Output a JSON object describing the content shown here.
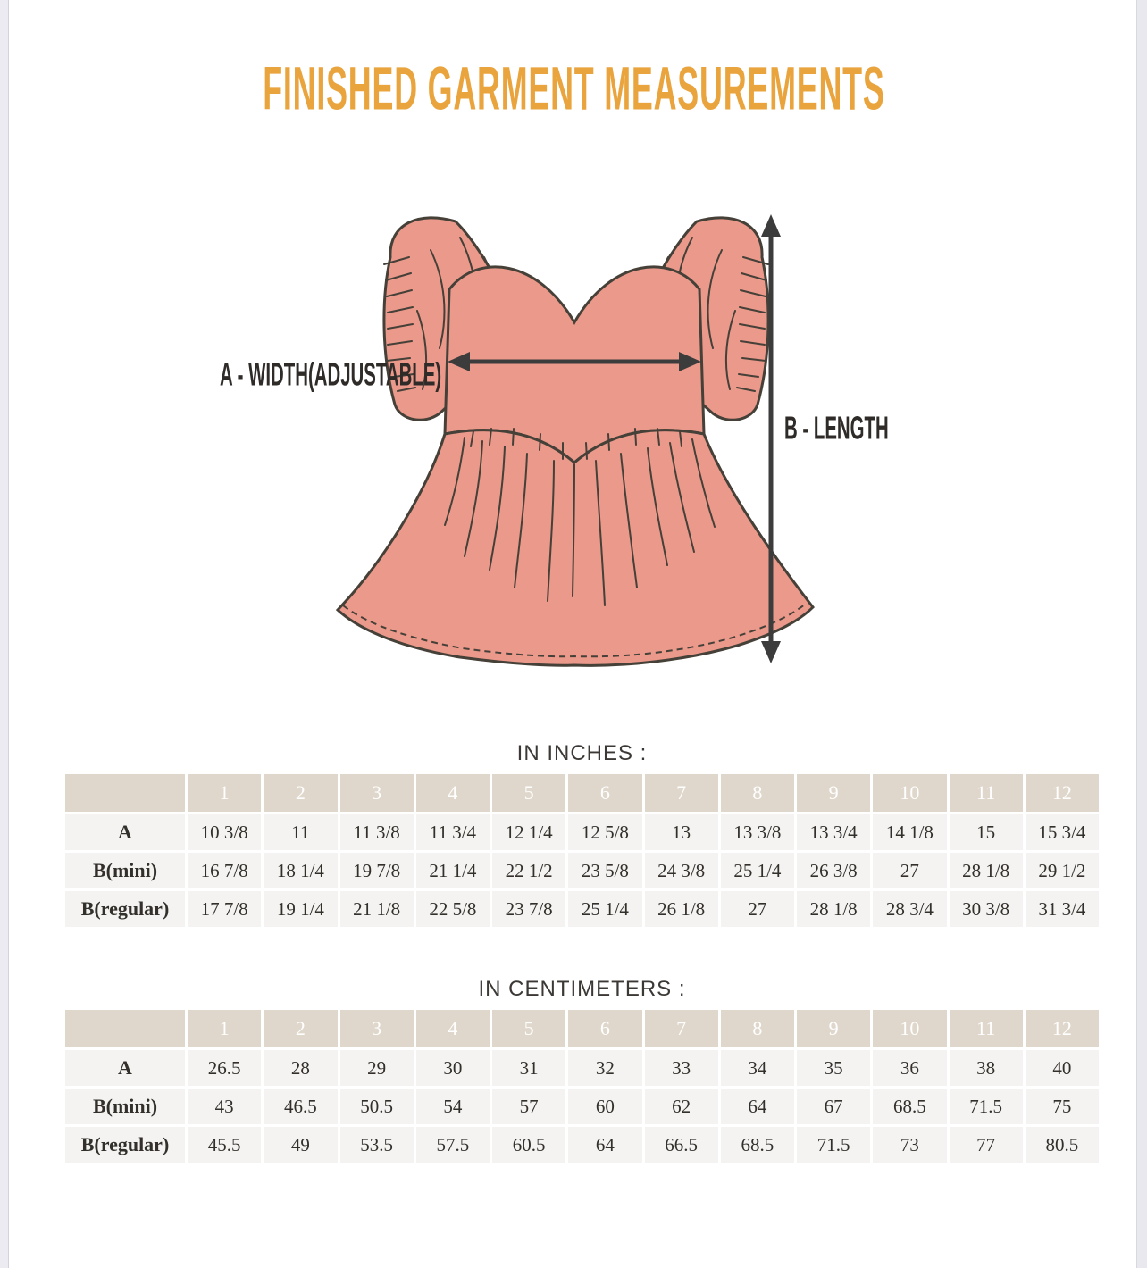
{
  "page_title": "FINISHED GARMENT MEASUREMENTS",
  "diagram": {
    "width_label": "A - WIDTH(ADJUSTABLE)",
    "length_label": "B - LENGTH",
    "dress_fill": "#eb998b",
    "outline_color": "#454038",
    "arrow_color": "#3c3c3c"
  },
  "colors": {
    "title": "#e9a43d",
    "table_header_bg": "#dfd7cb",
    "table_cell_bg": "#f4f3f1",
    "text": "#33302c"
  },
  "tables": [
    {
      "heading": "IN INCHES :",
      "sizes": [
        "1",
        "2",
        "3",
        "4",
        "5",
        "6",
        "7",
        "8",
        "9",
        "10",
        "11",
        "12"
      ],
      "rows": [
        {
          "label": "A",
          "values": [
            "10 3/8",
            "11",
            "11 3/8",
            "11 3/4",
            "12 1/4",
            "12 5/8",
            "13",
            "13 3/8",
            "13 3/4",
            "14 1/8",
            "15",
            "15 3/4"
          ]
        },
        {
          "label": "B(mini)",
          "values": [
            "16 7/8",
            "18 1/4",
            "19 7/8",
            "21 1/4",
            "22 1/2",
            "23 5/8",
            "24 3/8",
            "25 1/4",
            "26 3/8",
            "27",
            "28 1/8",
            "29 1/2"
          ]
        },
        {
          "label": "B(regular)",
          "values": [
            "17 7/8",
            "19 1/4",
            "21 1/8",
            "22 5/8",
            "23 7/8",
            "25 1/4",
            "26 1/8",
            "27",
            "28 1/8",
            "28 3/4",
            "30 3/8",
            "31 3/4"
          ]
        }
      ]
    },
    {
      "heading": "IN CENTIMETERS :",
      "sizes": [
        "1",
        "2",
        "3",
        "4",
        "5",
        "6",
        "7",
        "8",
        "9",
        "10",
        "11",
        "12"
      ],
      "rows": [
        {
          "label": "A",
          "values": [
            "26.5",
            "28",
            "29",
            "30",
            "31",
            "32",
            "33",
            "34",
            "35",
            "36",
            "38",
            "40"
          ]
        },
        {
          "label": "B(mini)",
          "values": [
            "43",
            "46.5",
            "50.5",
            "54",
            "57",
            "60",
            "62",
            "64",
            "67",
            "68.5",
            "71.5",
            "75"
          ]
        },
        {
          "label": "B(regular)",
          "values": [
            "45.5",
            "49",
            "53.5",
            "57.5",
            "60.5",
            "64",
            "66.5",
            "68.5",
            "71.5",
            "73",
            "77",
            "80.5"
          ]
        }
      ]
    }
  ]
}
